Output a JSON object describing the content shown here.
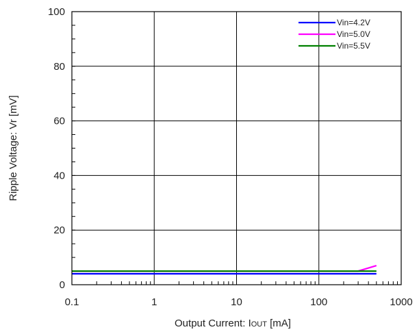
{
  "chart_data": {
    "type": "line",
    "title": "",
    "xlabel": "Output  Current: I",
    "xlabel_sub": "OUT",
    "xlabel_unit": " [mA]",
    "ylabel": "Ripple Voltage: Vr [mV]",
    "xscale": "log",
    "xlim": [
      0.1,
      1000
    ],
    "ylim": [
      0,
      100
    ],
    "xticks": [
      0.1,
      1,
      10,
      100,
      1000
    ],
    "xtick_labels": [
      "0.1",
      "1",
      "10",
      "100",
      "1000"
    ],
    "yticks": [
      0,
      20,
      40,
      60,
      80,
      100
    ],
    "ytick_labels": [
      "0",
      "20",
      "40",
      "60",
      "80",
      "100"
    ],
    "grid": true,
    "legend_position": "top-right",
    "series": [
      {
        "name": "Vin=4.2V",
        "color": "#0000ff",
        "x": [
          0.1,
          1,
          10,
          100,
          500
        ],
        "y": [
          4,
          4,
          4,
          4,
          4
        ]
      },
      {
        "name": "Vin=5.0V",
        "color": "#ff00ff",
        "x": [
          0.1,
          1,
          10,
          100,
          300,
          500
        ],
        "y": [
          5,
          5,
          5,
          5,
          5,
          7
        ]
      },
      {
        "name": "Vin=5.5V",
        "color": "#008000",
        "x": [
          0.1,
          1,
          10,
          100,
          500
        ],
        "y": [
          5,
          5,
          5,
          5,
          5
        ]
      }
    ]
  }
}
